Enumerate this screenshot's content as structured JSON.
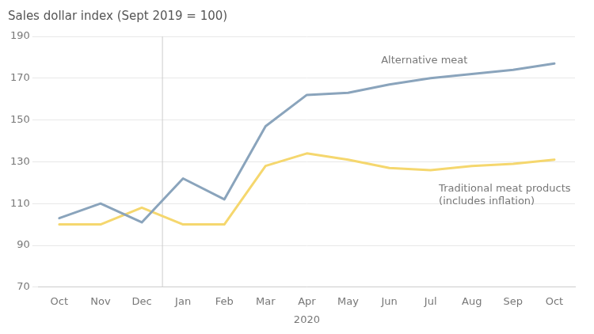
{
  "chart_data": {
    "type": "line",
    "ylabel": "Sales dollar index (Sept 2019 = 100)",
    "xlabel": "2020",
    "categories": [
      "Oct",
      "Nov",
      "Dec",
      "Jan",
      "Feb",
      "Mar",
      "Apr",
      "May",
      "Jun",
      "Jul",
      "Aug",
      "Sep",
      "Oct"
    ],
    "series": [
      {
        "name": "Alternative meat",
        "color": "#8aa4bc",
        "values": [
          103,
          110,
          101,
          122,
          112,
          147,
          162,
          163,
          167,
          170,
          172,
          174,
          177
        ]
      },
      {
        "name": "Traditional meat products\n(includes inflation)",
        "color": "#f5d76e",
        "values": [
          100,
          100,
          108,
          100,
          100,
          128,
          134,
          131,
          127,
          126,
          128,
          129,
          131
        ]
      }
    ],
    "ylim": [
      70,
      190
    ],
    "yticks": [
      70,
      90,
      110,
      130,
      150,
      170,
      190
    ],
    "vlines": [
      2.5
    ],
    "grid": true
  }
}
